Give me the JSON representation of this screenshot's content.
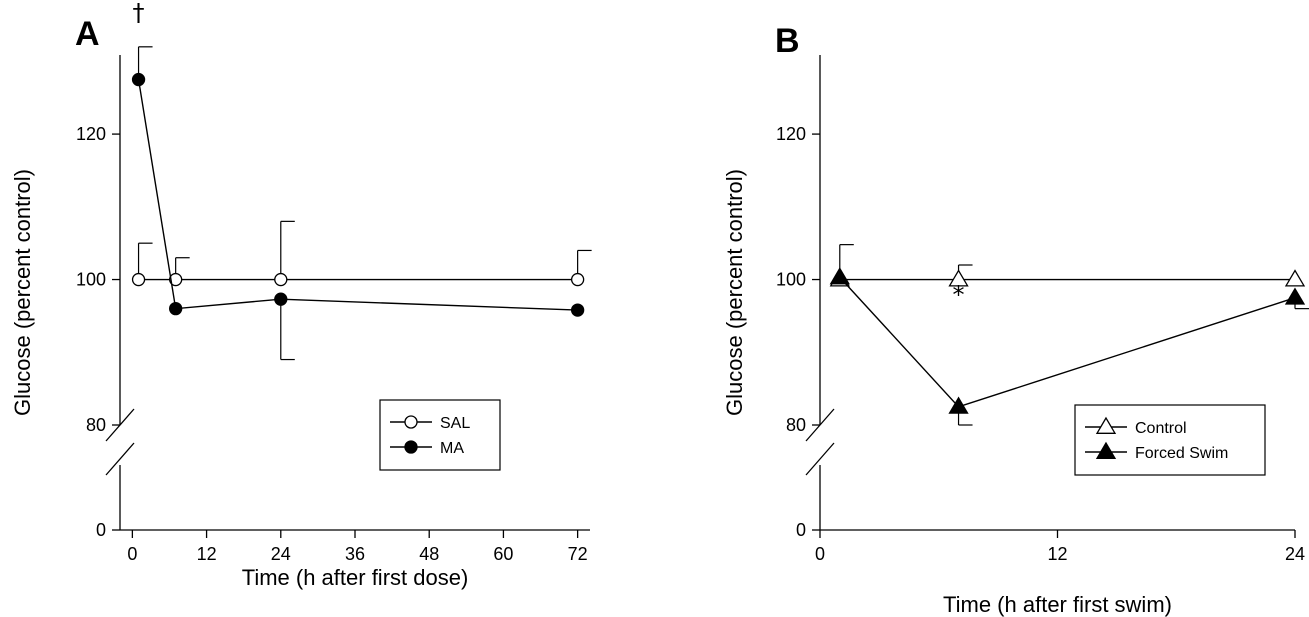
{
  "chart_data": [
    {
      "panel": "A",
      "type": "line",
      "xlabel": "Time (h after first dose)",
      "ylabel": "Glucose (percent control)",
      "x_ticks": [
        0,
        12,
        24,
        36,
        48,
        60,
        72
      ],
      "y_ticks": [
        0,
        80,
        100,
        120
      ],
      "xlim": [
        -2,
        74
      ],
      "ylim_lower": [
        0,
        20
      ],
      "ylim_upper": [
        80,
        135
      ],
      "axis_break": true,
      "legend_position": "lower-right",
      "series": [
        {
          "name": "SAL",
          "marker": "open-circle",
          "x": [
            1,
            7,
            24,
            72
          ],
          "y": [
            100,
            100,
            100,
            100
          ],
          "err": [
            5,
            3,
            8,
            4
          ]
        },
        {
          "name": "MA",
          "marker": "filled-circle",
          "x": [
            1,
            7,
            24,
            72
          ],
          "y": [
            127.5,
            96,
            97.3,
            95.8
          ],
          "err": [
            4.5,
            0,
            8.3,
            0
          ]
        }
      ],
      "annotations": [
        {
          "text": "†",
          "x": 1,
          "y": 137
        }
      ]
    },
    {
      "panel": "B",
      "type": "line",
      "xlabel": "Time (h after first swim)",
      "ylabel": "Glucose (percent control)",
      "x_ticks": [
        0,
        12,
        24
      ],
      "y_ticks": [
        0,
        80,
        100,
        120
      ],
      "xlim": [
        0,
        24
      ],
      "ylim_lower": [
        0,
        20
      ],
      "ylim_upper": [
        80,
        135
      ],
      "axis_break": true,
      "legend_position": "lower-right",
      "series": [
        {
          "name": "Control",
          "marker": "open-triangle",
          "x": [
            1,
            7,
            24
          ],
          "y": [
            100,
            100,
            100
          ],
          "err": [
            0,
            2,
            0
          ]
        },
        {
          "name": "Forced Swim",
          "marker": "filled-triangle",
          "x": [
            1,
            7,
            24
          ],
          "y": [
            100.3,
            82.5,
            97.5
          ],
          "err": [
            4.5,
            2.5,
            1.5
          ]
        }
      ],
      "annotations": [
        {
          "text": "*",
          "x": 7,
          "y": 73
        }
      ]
    }
  ]
}
